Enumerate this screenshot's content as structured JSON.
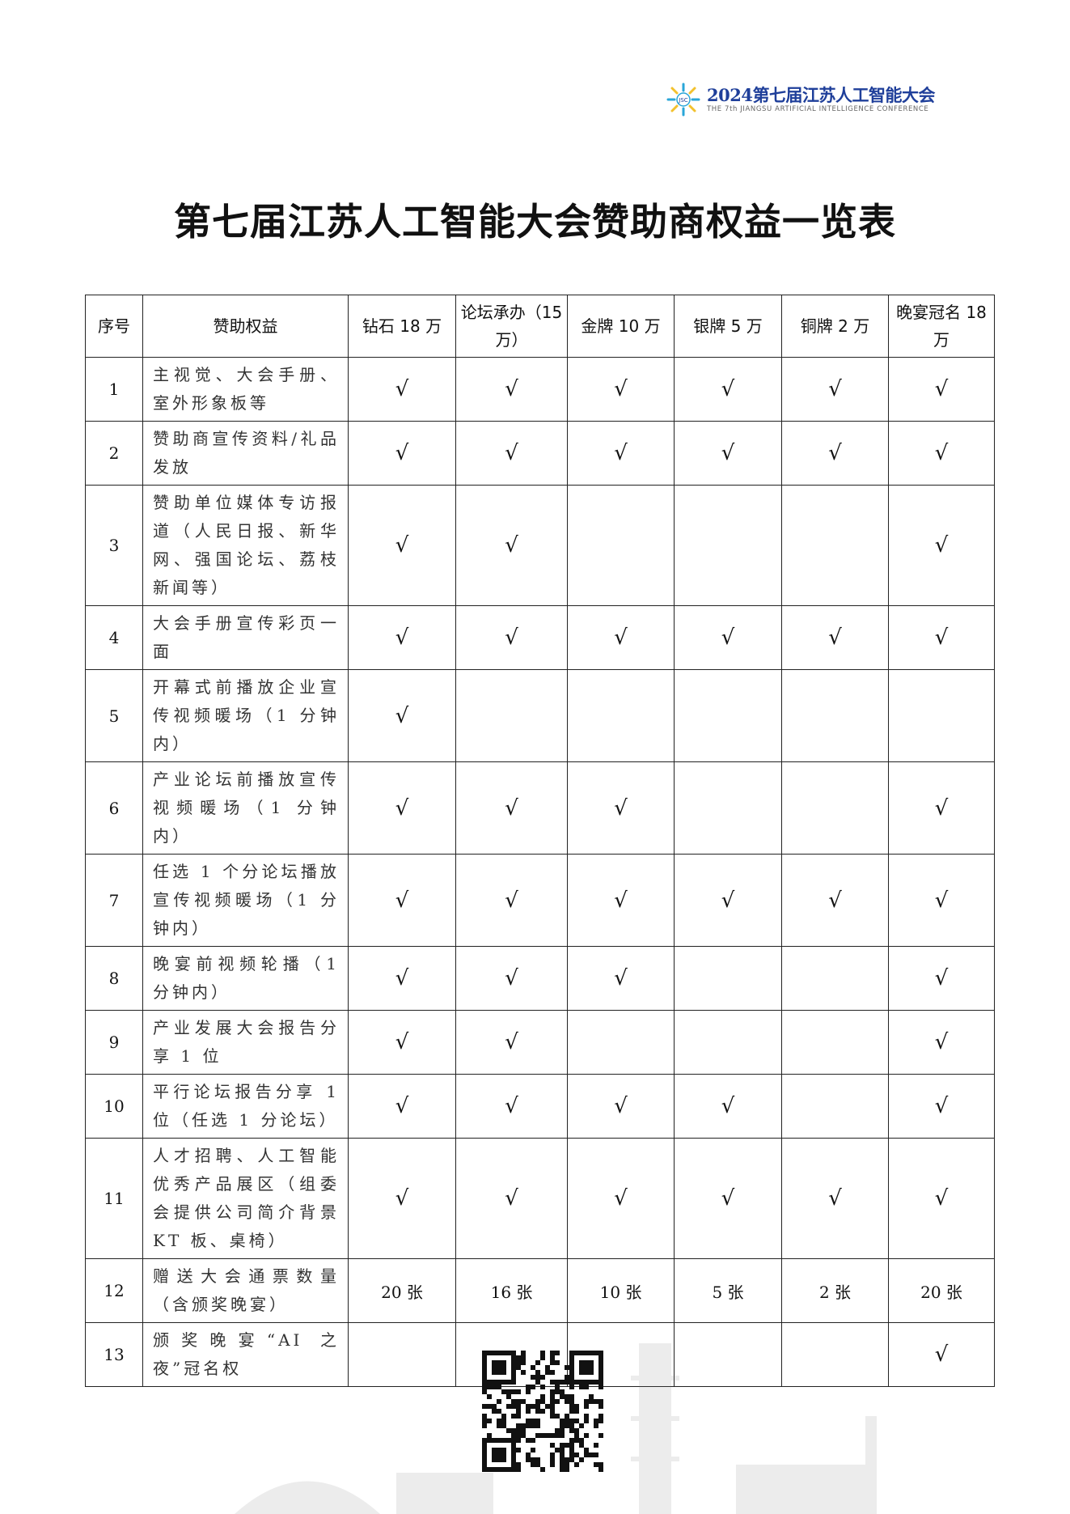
{
  "logo": {
    "title": "2024第七届江苏人工智能大会",
    "subtitle": "THE 7th JIANGSU ARTIFICIAL INTELLIGENCE CONFERENCE",
    "badge": "JSC",
    "colors": {
      "primary": "#1f3f9a",
      "accent": "#29a6d8",
      "yellow": "#f2c12e"
    }
  },
  "title": "第七届江苏人工智能大会赞助商权益一览表",
  "table": {
    "headers": [
      "序号",
      "赞助权益",
      "钻石 18 万",
      "论坛承办（15 万）",
      "金牌 10 万",
      "银牌 5 万",
      "铜牌 2 万",
      "晚宴冠名 18 万"
    ],
    "check": "√",
    "rows": [
      {
        "no": "1",
        "item": "主视觉、大会手册、室外形象板等",
        "cells": [
          "√",
          "√",
          "√",
          "√",
          "√",
          "√"
        ]
      },
      {
        "no": "2",
        "item": "赞助商宣传资料/礼品发放",
        "cells": [
          "√",
          "√",
          "√",
          "√",
          "√",
          "√"
        ]
      },
      {
        "no": "3",
        "item": "赞助单位媒体专访报道（人民日报、新华网、强国论坛、荔枝新闻等）",
        "cells": [
          "√",
          "√",
          "",
          "",
          "",
          "√"
        ]
      },
      {
        "no": "4",
        "item": "大会手册宣传彩页一面",
        "cells": [
          "√",
          "√",
          "√",
          "√",
          "√",
          "√"
        ]
      },
      {
        "no": "5",
        "item": "开幕式前播放企业宣传视频暖场（1 分钟内）",
        "cells": [
          "√",
          "",
          "",
          "",
          "",
          ""
        ]
      },
      {
        "no": "6",
        "item": "产业论坛前播放宣传视频暖场（1 分钟内）",
        "cells": [
          "√",
          "√",
          "√",
          "",
          "",
          "√"
        ]
      },
      {
        "no": "7",
        "item": "任选 1 个分论坛播放宣传视频暖场（1 分钟内）",
        "cells": [
          "√",
          "√",
          "√",
          "√",
          "√",
          "√"
        ]
      },
      {
        "no": "8",
        "item": "晚宴前视频轮播（1 分钟内）",
        "cells": [
          "√",
          "√",
          "√",
          "",
          "",
          "√"
        ]
      },
      {
        "no": "9",
        "item": "产业发展大会报告分享 1 位",
        "cells": [
          "√",
          "√",
          "",
          "",
          "",
          "√"
        ]
      },
      {
        "no": "10",
        "item": "平行论坛报告分享 1 位（任选 1 分论坛）",
        "cells": [
          "√",
          "√",
          "√",
          "√",
          "",
          "√"
        ]
      },
      {
        "no": "11",
        "item": "人才招聘、人工智能优秀产品展区（组委会提供公司简介背景 KT 板、桌椅）",
        "cells": [
          "√",
          "√",
          "√",
          "√",
          "√",
          "√"
        ]
      },
      {
        "no": "12",
        "item": "赠送大会通票数量（含颁奖晚宴）",
        "cells": [
          "20 张",
          "16 张",
          "10 张",
          "5 张",
          "2 张",
          "20 张"
        ]
      },
      {
        "no": "13",
        "item": "颁奖晚宴“AI 之夜”冠名权",
        "cells": [
          "",
          "",
          "",
          "",
          "",
          "√"
        ]
      }
    ]
  },
  "qr_icon": "qr-code"
}
